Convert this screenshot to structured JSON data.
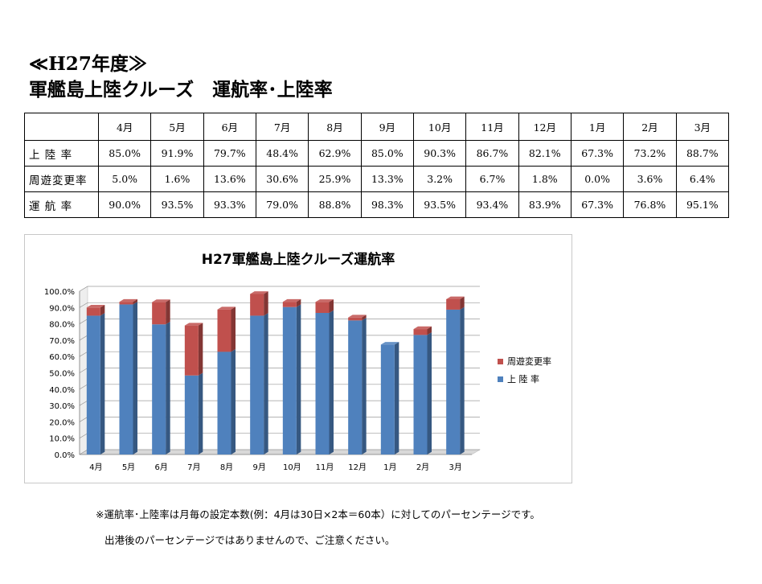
{
  "heading": {
    "line1": "≪H27年度≫",
    "line2": "軍艦島上陸クルーズ　運航率･上陸率"
  },
  "table": {
    "months": [
      "4月",
      "5月",
      "6月",
      "7月",
      "8月",
      "9月",
      "10月",
      "11月",
      "12月",
      "1月",
      "2月",
      "3月"
    ],
    "rows": [
      {
        "label": "上 陸 率",
        "values": [
          "85.0%",
          "91.9%",
          "79.7%",
          "48.4%",
          "62.9%",
          "85.0%",
          "90.3%",
          "86.7%",
          "82.1%",
          "67.3%",
          "73.2%",
          "88.7%"
        ]
      },
      {
        "label": "周遊変更率",
        "values": [
          "5.0%",
          "1.6%",
          "13.6%",
          "30.6%",
          "25.9%",
          "13.3%",
          "3.2%",
          "6.7%",
          "1.8%",
          "0.0%",
          "3.6%",
          "6.4%"
        ]
      },
      {
        "label": "運 航 率",
        "values": [
          "90.0%",
          "93.5%",
          "93.3%",
          "79.0%",
          "88.8%",
          "98.3%",
          "93.5%",
          "93.4%",
          "83.9%",
          "67.3%",
          "76.8%",
          "95.1%"
        ]
      }
    ]
  },
  "chart_data": {
    "type": "bar",
    "stacked": true,
    "title": "H27軍艦島上陸クルーズ運航率",
    "categories": [
      "4月",
      "5月",
      "6月",
      "7月",
      "8月",
      "9月",
      "10月",
      "11月",
      "12月",
      "1月",
      "2月",
      "3月"
    ],
    "series": [
      {
        "name": "上 陸 率",
        "color": "#4f81bd",
        "values": [
          85.0,
          91.9,
          79.7,
          48.4,
          62.9,
          85.0,
          90.3,
          86.7,
          82.1,
          67.3,
          73.2,
          88.7
        ]
      },
      {
        "name": "周遊変更率",
        "color": "#c0504d",
        "values": [
          5.0,
          1.6,
          13.6,
          30.6,
          25.9,
          13.3,
          3.2,
          6.7,
          1.8,
          0.0,
          3.6,
          6.4
        ]
      }
    ],
    "ylim": [
      0,
      100
    ],
    "yticks": [
      "0.0%",
      "10.0%",
      "20.0%",
      "30.0%",
      "40.0%",
      "50.0%",
      "60.0%",
      "70.0%",
      "80.0%",
      "90.0%",
      "100.0%"
    ],
    "legend_position": "right",
    "legend": [
      "周遊変更率",
      "上 陸 率"
    ]
  },
  "notes": {
    "line1": "※運航率･上陸率は月毎の設定本数(例：4月は30日×2本＝60本）に対してのパーセンテージです。",
    "line2": "出港後のパーセンテージではありませんので、ご注意ください。"
  }
}
